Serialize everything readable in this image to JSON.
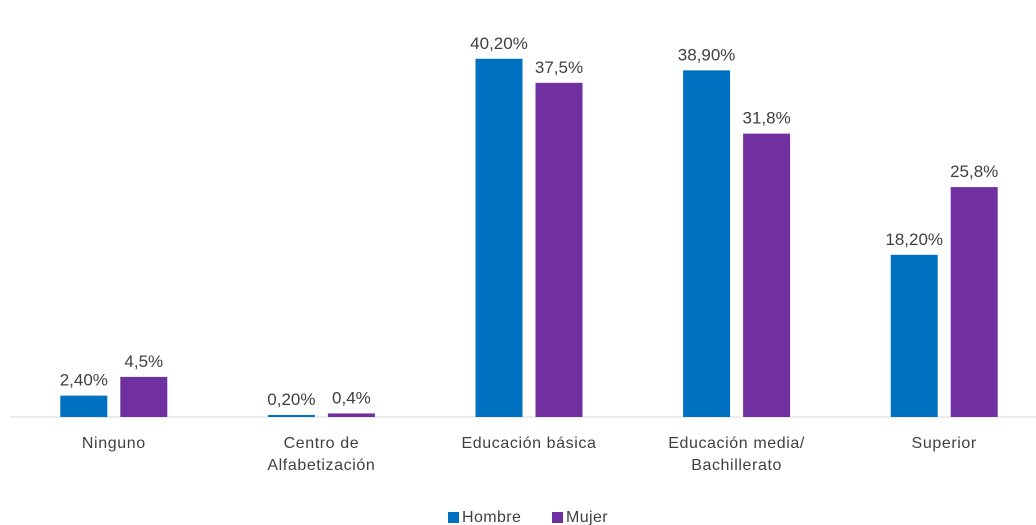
{
  "chart_data": {
    "type": "bar",
    "categories": [
      [
        "Ninguno"
      ],
      [
        "Centro de",
        "Alfabetización"
      ],
      [
        "Educación básica"
      ],
      [
        "Educación media/",
        "Bachillerato"
      ],
      [
        "Superior"
      ]
    ],
    "series": [
      {
        "name": "Hombre",
        "color": "#0070C0",
        "values": [
          2.4,
          0.2,
          40.2,
          38.9,
          18.2
        ],
        "labels": [
          "2,40%",
          "0,20%",
          "40,20%",
          "38,90%",
          "18,20%"
        ]
      },
      {
        "name": "Mujer",
        "color": "#7030A0",
        "values": [
          4.5,
          0.4,
          37.5,
          31.8,
          25.8
        ],
        "labels": [
          "4,5%",
          "0,4%",
          "37,5%",
          "31,8%",
          "25,8%"
        ]
      }
    ],
    "ylim": [
      0,
      45
    ],
    "grid": false,
    "legend_position": "bottom"
  }
}
